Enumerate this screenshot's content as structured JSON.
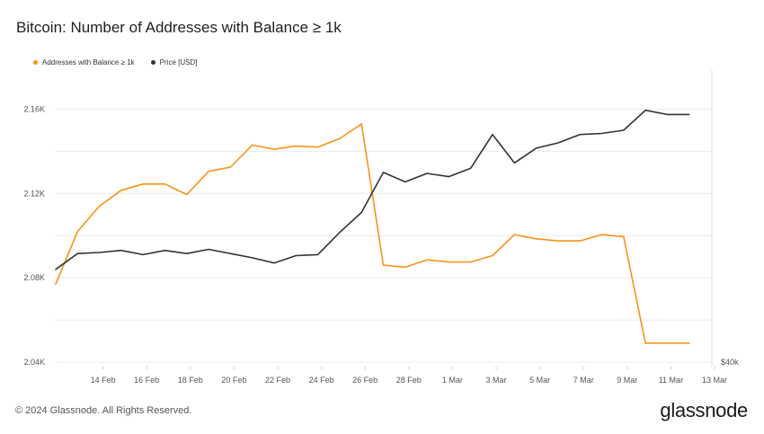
{
  "colors": {
    "addresses": "#f7931a",
    "price": "#333333",
    "grid": "#ececec"
  },
  "footer": {
    "copyright": "© 2024 Glassnode. All Rights Reserved."
  },
  "brand": {
    "name": "glassnode"
  },
  "chart_data": {
    "type": "line",
    "title": "Bitcoin: Number of Addresses with Balance ≥ 1k",
    "xlabel": "",
    "ylabel": "",
    "x_tick_labels": [
      "14 Feb",
      "16 Feb",
      "18 Feb",
      "20 Feb",
      "22 Feb",
      "24 Feb",
      "26 Feb",
      "28 Feb",
      "1 Mar",
      "3 Mar",
      "5 Mar",
      "7 Mar",
      "9 Mar",
      "11 Mar",
      "13 Mar"
    ],
    "y_left": {
      "ticks": [
        "2.04K",
        "2.08K",
        "2.12K",
        "2.16K"
      ],
      "tick_values": [
        2040,
        2080,
        2120,
        2160
      ],
      "ylim": [
        2040,
        2160
      ]
    },
    "y_right": {
      "ticks": [
        "$40k"
      ]
    },
    "grid": true,
    "legend_position": "top-left",
    "x": [
      "2024-02-12",
      "2024-02-13",
      "2024-02-14",
      "2024-02-15",
      "2024-02-16",
      "2024-02-17",
      "2024-02-18",
      "2024-02-19",
      "2024-02-20",
      "2024-02-21",
      "2024-02-22",
      "2024-02-23",
      "2024-02-24",
      "2024-02-25",
      "2024-02-26",
      "2024-02-27",
      "2024-02-28",
      "2024-02-29",
      "2024-03-01",
      "2024-03-02",
      "2024-03-03",
      "2024-03-04",
      "2024-03-05",
      "2024-03-06",
      "2024-03-07",
      "2024-03-08",
      "2024-03-09",
      "2024-03-10",
      "2024-03-11",
      "2024-03-12"
    ],
    "series": [
      {
        "name": "Addresses with Balance ≥ 1k",
        "axis": "left",
        "color": "#f7931a",
        "values": [
          2077,
          2102,
          2114,
          2121.5,
          2124.5,
          2124.5,
          2119.5,
          2130.5,
          2132.5,
          2143,
          2141,
          2142.5,
          2142,
          2146,
          2153,
          2086,
          2085,
          2088.5,
          2087.5,
          2087.5,
          2090.5,
          2100.5,
          2098.5,
          2097.5,
          2097.5,
          2100.5,
          2099.5,
          2049,
          2049,
          2049
        ]
      },
      {
        "name": "Price [USD]",
        "axis": "right",
        "color": "#333333",
        "values": [
          2084,
          2091.5,
          2092,
          2093,
          2091,
          2093,
          2091.5,
          2093.5,
          2091.5,
          2089.5,
          2087,
          2090.5,
          2091,
          2101.5,
          2111,
          2130,
          2125.5,
          2129.5,
          2128,
          2132,
          2148,
          2134.5,
          2141.5,
          2144,
          2148,
          2148.5,
          2150,
          2159.5,
          2157.5,
          2157.5
        ]
      }
    ]
  }
}
